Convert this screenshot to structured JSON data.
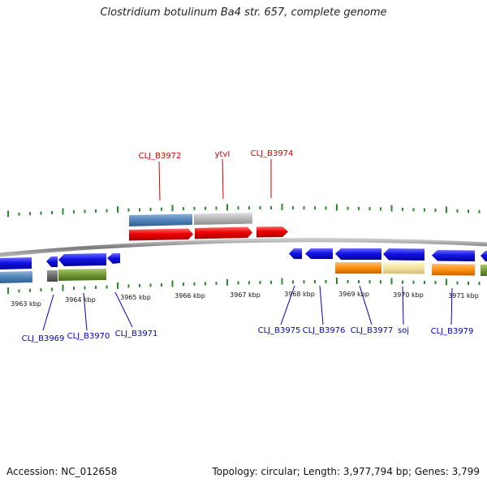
{
  "title": "Clostridium botulinum Ba4 str. 657, complete genome",
  "footer": {
    "accession": "Accession: NC_012658",
    "summary": "Topology: circular; Length: 3,977,794 bp; Genes: 3,799"
  },
  "colors": {
    "upper_gene_label": "#cc0000",
    "lower_gene_label": "#0000cc",
    "tick": "#2a8a2a",
    "backbone": "#8a8a8a"
  },
  "upper_genes": [
    {
      "label": "CLJ_B3972"
    },
    {
      "label": "ytvI"
    },
    {
      "label": "CLJ_B3974"
    }
  ],
  "lower_genes": [
    {
      "label": "CLJ_B3969"
    },
    {
      "label": "CLJ_B3970"
    },
    {
      "label": "CLJ_B3971"
    },
    {
      "label": "CLJ_B3975"
    },
    {
      "label": "CLJ_B3976"
    },
    {
      "label": "CLJ_B3977"
    },
    {
      "label": "soj"
    },
    {
      "label": "CLJ_B3979"
    }
  ],
  "kbp_labels": [
    "3963 kbp",
    "3964 kbp",
    "3965 kbp",
    "3966 kbp",
    "3967 kbp",
    "3968 kbp",
    "3969 kbp",
    "3970 kbp",
    "3971 kbp"
  ]
}
